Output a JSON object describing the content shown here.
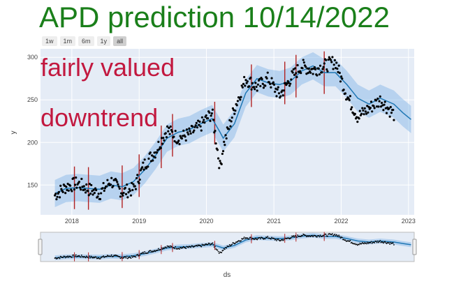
{
  "title": "APD prediction 10/14/2022",
  "range_buttons": [
    {
      "label": "1w",
      "active": false
    },
    {
      "label": "1m",
      "active": false
    },
    {
      "label": "6m",
      "active": false
    },
    {
      "label": "1y",
      "active": false
    },
    {
      "label": "all",
      "active": true
    }
  ],
  "annotations": [
    "fairly valued",
    "downtrend"
  ],
  "colors": {
    "title": "#1a7f1a",
    "annotation": "#c2183f",
    "plot_bg": "#e5ecf6",
    "band": "#7fb3e6",
    "trend": "#1f77b4",
    "points": "#000000",
    "changepoints": "#b22222"
  },
  "chart_data": {
    "type": "line",
    "xlabel": "ds",
    "ylabel": "y",
    "xlim": [
      "2017-07-15",
      "2023-02-01"
    ],
    "ylim": [
      115,
      310
    ],
    "x_ticks": [
      "2018",
      "2019",
      "2020",
      "2021",
      "2022",
      "2023"
    ],
    "y_ticks": [
      150,
      200,
      250,
      300
    ],
    "grid": true,
    "observed_range": [
      "2017-10-01",
      "2022-10-14"
    ],
    "forecast_end": "2023-01-15",
    "series": [
      {
        "kind": "forecast",
        "x": [
          "2017-10-01",
          "2017-12-01",
          "2018-02-01",
          "2018-04-01",
          "2018-06-01",
          "2018-08-01",
          "2018-10-01",
          "2018-12-01",
          "2019-02-01",
          "2019-04-01",
          "2019-06-01",
          "2019-08-01",
          "2019-10-01",
          "2019-12-01",
          "2020-02-01",
          "2020-03-15",
          "2020-04-01",
          "2020-06-01",
          "2020-08-01",
          "2020-10-01",
          "2020-12-01",
          "2021-02-01",
          "2021-04-01",
          "2021-06-01",
          "2021-08-01",
          "2021-10-01",
          "2021-12-01",
          "2022-02-01",
          "2022-04-01",
          "2022-06-01",
          "2022-08-01",
          "2022-10-14",
          "2022-12-01",
          "2023-01-15"
        ],
        "yhat": [
          140,
          146,
          147,
          146,
          145,
          150,
          148,
          154,
          168,
          185,
          205,
          212,
          215,
          222,
          228,
          212,
          205,
          222,
          258,
          275,
          270,
          268,
          272,
          284,
          290,
          282,
          282,
          268,
          252,
          245,
          252,
          245,
          235,
          227
        ],
        "band_width": 16
      },
      {
        "kind": "observed",
        "x": [
          "2017-10-01",
          "2017-12-01",
          "2018-02-01",
          "2018-04-01",
          "2018-06-01",
          "2018-08-01",
          "2018-10-01",
          "2018-12-01",
          "2019-02-01",
          "2019-04-01",
          "2019-06-01",
          "2019-08-01",
          "2019-10-01",
          "2019-12-01",
          "2020-02-01",
          "2020-03-15",
          "2020-04-01",
          "2020-06-01",
          "2020-08-01",
          "2020-10-01",
          "2020-12-01",
          "2021-02-01",
          "2021-04-01",
          "2021-06-01",
          "2021-08-01",
          "2021-10-01",
          "2021-12-01",
          "2022-02-01",
          "2022-04-01",
          "2022-06-01",
          "2022-08-01",
          "2022-10-14"
        ],
        "y": [
          138,
          148,
          152,
          145,
          140,
          155,
          142,
          145,
          175,
          190,
          215,
          205,
          210,
          220,
          235,
          170,
          195,
          240,
          275,
          265,
          275,
          255,
          275,
          290,
          285,
          290,
          295,
          255,
          230,
          240,
          250,
          233
        ]
      }
    ],
    "changepoints": [
      "2018-01-15",
      "2018-04-01",
      "2018-10-01",
      "2019-01-01",
      "2019-05-01",
      "2019-07-01",
      "2020-02-15",
      "2020-09-01",
      "2021-03-01",
      "2021-05-01",
      "2021-10-01"
    ]
  }
}
